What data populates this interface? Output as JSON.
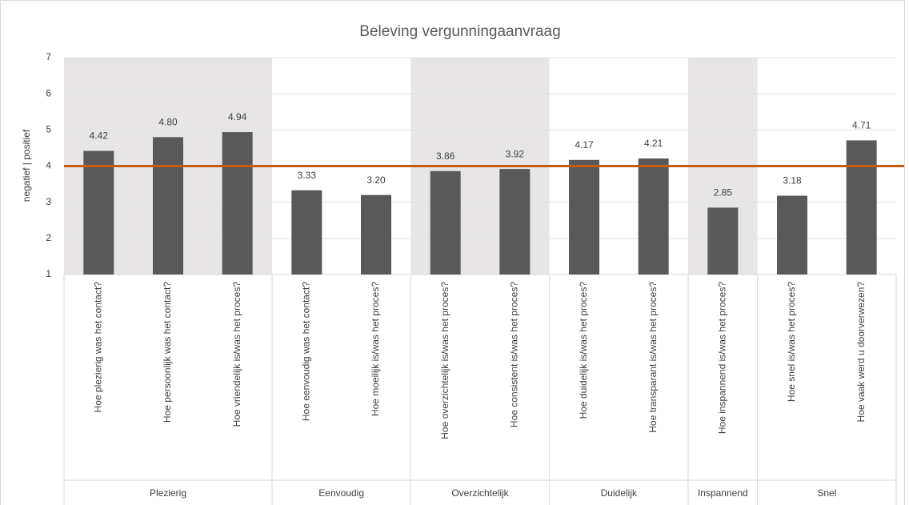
{
  "chart_data": {
    "type": "bar",
    "title": "Beleving vergunningaanvraag",
    "y_label": "negatief | positief",
    "ylim": [
      1,
      7
    ],
    "yticks": [
      1,
      2,
      3,
      4,
      5,
      6,
      7
    ],
    "grid": true,
    "color": "#595959",
    "band_color": "#e7e5e5",
    "reference_line": {
      "value": 4,
      "color": "#c55a11"
    },
    "groups": [
      {
        "name": "Plezierig",
        "categories": [
          "Hoe plezierig was het contact?",
          "Hoe persoonlijk was het contact?",
          "Hoe vriendelijk is/was het proces?"
        ],
        "values": [
          4.42,
          4.8,
          4.94
        ],
        "value_labels": [
          "4.42",
          "4.80",
          "4.94"
        ]
      },
      {
        "name": "Eenvoudig",
        "categories": [
          "Hoe eenvoudig was het contact?",
          "Hoe moeilijk is/was het proces?"
        ],
        "values": [
          3.33,
          3.2
        ],
        "value_labels": [
          "3.33",
          "3.20"
        ]
      },
      {
        "name": "Overzichtelijk",
        "categories": [
          "Hoe overzichtelijk is/was het proces?",
          "Hoe consistent is/was het proces?"
        ],
        "values": [
          3.86,
          3.92
        ],
        "value_labels": [
          "3.86",
          "3.92"
        ]
      },
      {
        "name": "Duidelijk",
        "categories": [
          "Hoe duidelijk is/was het proces?",
          "Hoe transparant is/was het proces?"
        ],
        "values": [
          4.17,
          4.21
        ],
        "value_labels": [
          "4.17",
          "4.21"
        ]
      },
      {
        "name": "Inspannend",
        "categories": [
          "Hoe inspannend is/was het proces?"
        ],
        "values": [
          2.85
        ],
        "value_labels": [
          "2.85"
        ]
      },
      {
        "name": "Snel",
        "categories": [
          "Hoe snel is/was het proces?",
          "Hoe vaak werd u doorverwezen?"
        ],
        "values": [
          3.18,
          4.71
        ],
        "value_labels": [
          "3.18",
          "4.71"
        ]
      }
    ]
  }
}
